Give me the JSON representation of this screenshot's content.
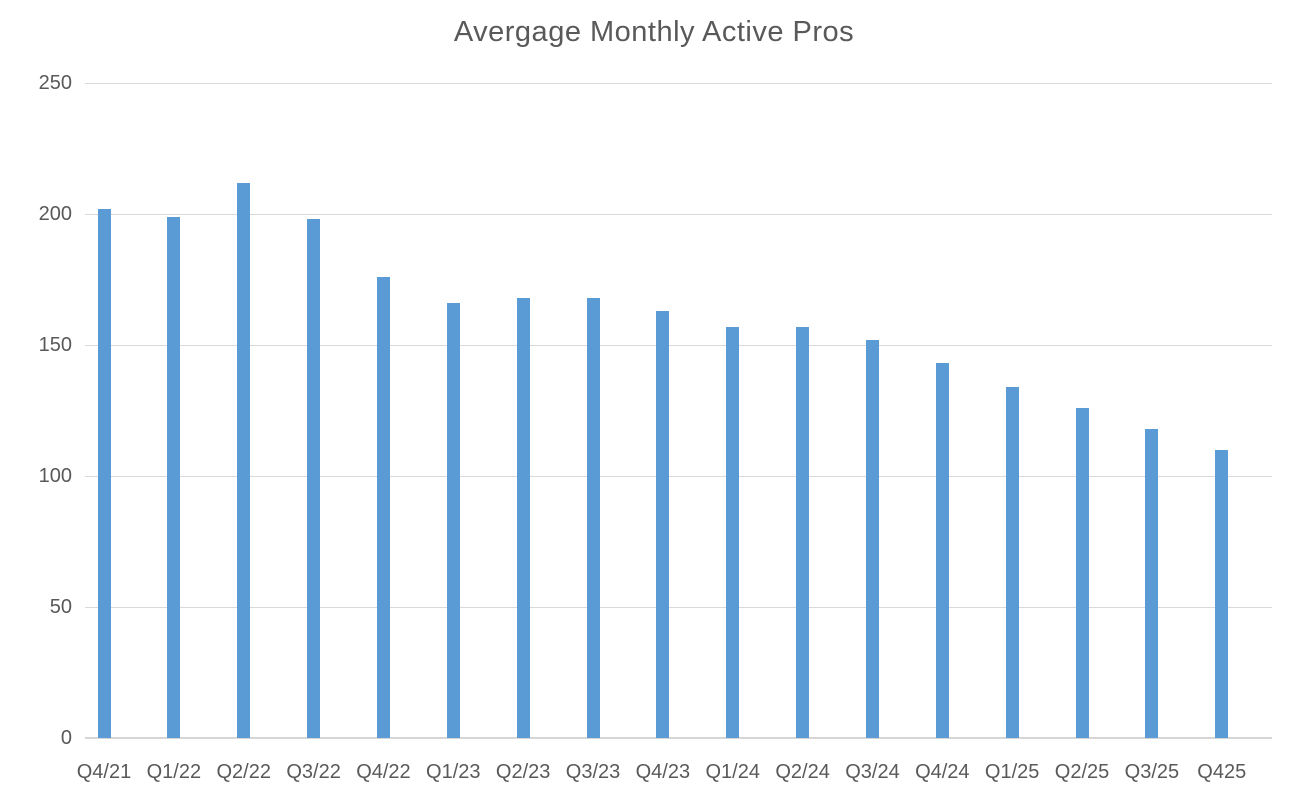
{
  "title": "Avergage Monthly Active Pros",
  "chart_data": {
    "type": "bar",
    "title": "Avergage Monthly Active Pros",
    "categories": [
      "Q4/21",
      "Q1/22",
      "Q2/22",
      "Q3/22",
      "Q4/22",
      "Q1/23",
      "Q2/23",
      "Q3/23",
      "Q4/23",
      "Q1/24",
      "Q2/24",
      "Q3/24",
      "Q4/24",
      "Q1/25",
      "Q2/25",
      "Q3/25",
      "Q425"
    ],
    "values": [
      202,
      199,
      212,
      198,
      176,
      166,
      168,
      168,
      163,
      157,
      157,
      152,
      143,
      134,
      126,
      118,
      110
    ],
    "xlabel": "",
    "ylabel": "",
    "ylim": [
      0,
      250
    ],
    "yticks": [
      0,
      50,
      100,
      150,
      200,
      250
    ],
    "grid": true,
    "legend": false,
    "bar_color": "#5b9bd5",
    "gridline_color": "#d9d9d9",
    "label_color": "#595959",
    "title_color": "#595959",
    "background_color": "#ffffff"
  }
}
